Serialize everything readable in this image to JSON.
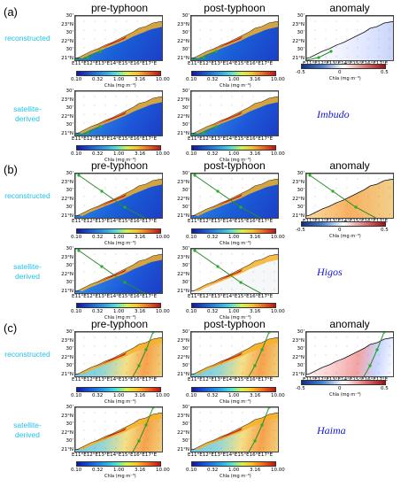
{
  "columns": {
    "pre": "pre-typhoon",
    "post": "post-typhoon",
    "anomaly": "anomaly"
  },
  "rows": {
    "reconstructed": "reconstructed",
    "satellite": "satellite-\nderived"
  },
  "panels": [
    {
      "letter": "(a)",
      "storm": "Imbudo"
    },
    {
      "letter": "(b)",
      "storm": "Higos"
    },
    {
      "letter": "(c)",
      "storm": "Haima"
    }
  ],
  "axes": {
    "lat": [
      "30'",
      "23°N",
      "30'",
      "22°N",
      "30'",
      "21°N"
    ],
    "lon": "E11°E12°E13°E14°E15°E16°E17°E"
  },
  "colorbars": {
    "chla": {
      "ticks": [
        "0.10",
        "0.32",
        "1.00",
        "3.16",
        "10.00"
      ],
      "label": "Chla (mg m⁻³)"
    },
    "anom": {
      "ticks": [
        "-0.5",
        "0",
        "0.5"
      ],
      "label": "Chla (mg m⁻³)"
    }
  },
  "colors": {
    "row_label": "#22c0e8",
    "storm_label": "#1818d8",
    "track": "#2e8b2e"
  }
}
